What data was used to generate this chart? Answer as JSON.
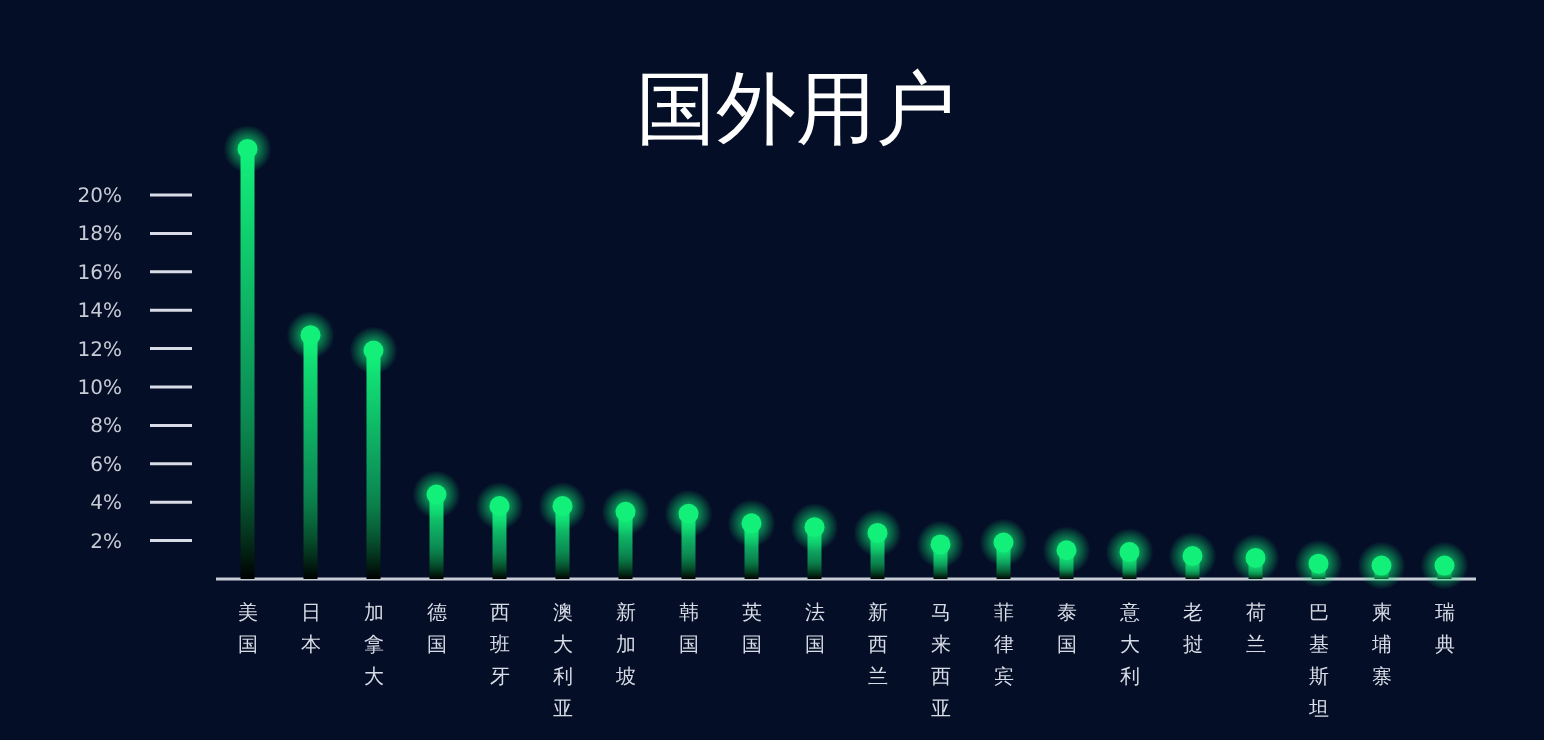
{
  "chart_data": {
    "type": "lollipop",
    "title": "国外用户",
    "categories": [
      "美国",
      "日本",
      "加拿大",
      "德国",
      "西班牙",
      "澳大利亚",
      "新加坡",
      "韩国",
      "英国",
      "法国",
      "新西兰",
      "马来西亚",
      "菲律宾",
      "泰国",
      "意大利",
      "老挝",
      "荷兰",
      "巴基斯坦",
      "柬埔寨",
      "瑞典"
    ],
    "values": [
      22.4,
      12.7,
      11.9,
      4.4,
      3.8,
      3.8,
      3.5,
      3.4,
      2.9,
      2.7,
      2.4,
      1.8,
      1.9,
      1.5,
      1.4,
      1.2,
      1.1,
      0.8,
      0.7,
      0.7
    ],
    "color": "#12f07a",
    "ylim": [
      0,
      23
    ],
    "yticks": [
      {
        "value": 2,
        "label": "2%"
      },
      {
        "value": 4,
        "label": "4%"
      },
      {
        "value": 6,
        "label": "6%"
      },
      {
        "value": 8,
        "label": "8%"
      },
      {
        "value": 10,
        "label": "10%"
      },
      {
        "value": 12,
        "label": "12%"
      },
      {
        "value": 14,
        "label": "14%"
      },
      {
        "value": 16,
        "label": "16%"
      },
      {
        "value": 18,
        "label": "18%"
      },
      {
        "value": 20,
        "label": "20%"
      }
    ]
  }
}
